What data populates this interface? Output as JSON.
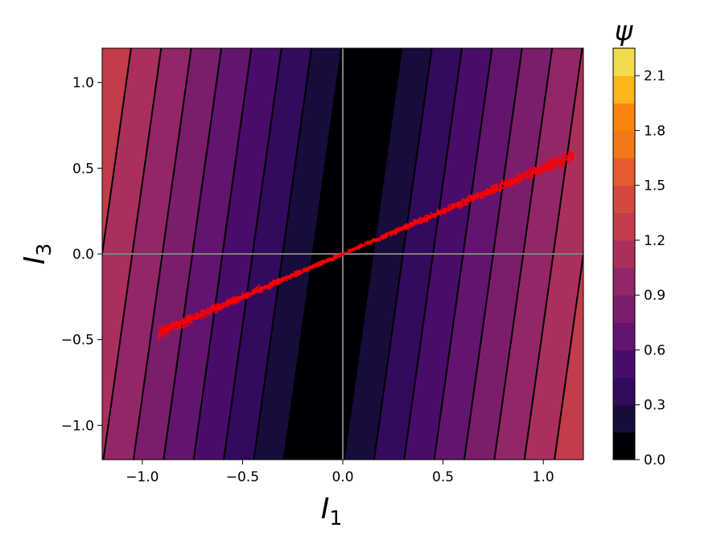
{
  "chart_data": {
    "type": "contour",
    "title": "",
    "xlabel": "I",
    "xlabel_sub": "1",
    "ylabel": "I",
    "ylabel_sub": "3",
    "xlim": [
      -1.2,
      1.2
    ],
    "ylim": [
      -1.2,
      1.2
    ],
    "x_ticks": [
      -1.0,
      -0.5,
      0.0,
      0.5,
      1.0
    ],
    "x_tick_labels": [
      "−1.0",
      "−0.5",
      "0.0",
      "0.5",
      "1.0"
    ],
    "y_ticks": [
      -1.0,
      -0.5,
      0.0,
      0.5,
      1.0
    ],
    "y_tick_labels": [
      "−1.0",
      "−0.5",
      "0.0",
      "0.5",
      "1.0"
    ],
    "field": {
      "expression": "psi = |I1 - 0.12*I3|",
      "min_line_direction": "slightly tilted (I1 = 0.12*I3)"
    },
    "levels": [
      0.0,
      0.15,
      0.3,
      0.45,
      0.6,
      0.75,
      0.9,
      1.05,
      1.2,
      1.35,
      1.5,
      1.65,
      1.8,
      1.95,
      2.1,
      2.25
    ],
    "colormap": "inferno",
    "level_colors": [
      "#000004",
      "#180c3c",
      "#320a5e",
      "#4a0c6b",
      "#63146e",
      "#7b1d6c",
      "#932667",
      "#ab2f5e",
      "#c23c4b",
      "#d44842",
      "#e55c30",
      "#f37819",
      "#f8850f",
      "#fbb61a",
      "#f4db4e"
    ],
    "colorbar": {
      "label": "ψ",
      "ticks": [
        0.0,
        0.3,
        0.6,
        0.9,
        1.2,
        1.5,
        1.8,
        2.1
      ],
      "tick_labels": [
        "0.0",
        "0.3",
        "0.6",
        "0.9",
        "1.2",
        "1.5",
        "1.8",
        "2.1"
      ],
      "range": [
        0.0,
        2.25
      ]
    },
    "reference_lines": [
      {
        "orientation": "vertical",
        "x": 0.0,
        "color": "#808080"
      },
      {
        "orientation": "horizontal",
        "y": 0.0,
        "color": "#808080"
      }
    ],
    "scatter": {
      "color": "#ff0000",
      "description": "dense band of samples along I3 ≈ 0.5*I1",
      "slope": 0.5,
      "x_range": [
        -0.92,
        1.15
      ],
      "band_center_points": [
        {
          "x": -0.92,
          "y": -0.44
        },
        {
          "x": -0.6,
          "y": -0.3
        },
        {
          "x": -0.3,
          "y": -0.15
        },
        {
          "x": 0.0,
          "y": 0.0
        },
        {
          "x": 0.3,
          "y": 0.15
        },
        {
          "x": 0.6,
          "y": 0.3
        },
        {
          "x": 0.9,
          "y": 0.45
        },
        {
          "x": 1.12,
          "y": 0.52
        }
      ]
    }
  }
}
